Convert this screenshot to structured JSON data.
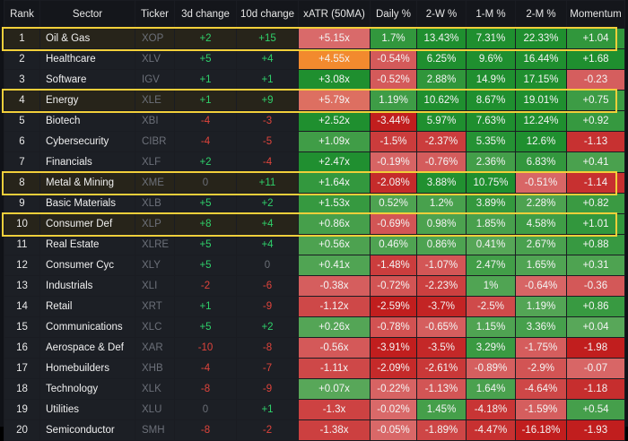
{
  "table": {
    "headers": [
      "Rank",
      "Sector",
      "Ticker",
      "3d change",
      "10d change",
      "xATR (50MA)",
      "Daily %",
      "2-W %",
      "1-M %",
      "2-M %",
      "Momentum"
    ],
    "rows": [
      {
        "rank": "1",
        "sector": "Oil & Gas",
        "ticker": "XOP",
        "d3": "+2",
        "d10": "+15",
        "xatr": "+5.15x",
        "daily": "1.7%",
        "w2": "13.43%",
        "m1": "7.31%",
        "m2": "22.33%",
        "mom": "+1.04",
        "highlight": true
      },
      {
        "rank": "2",
        "sector": "Healthcare",
        "ticker": "XLV",
        "d3": "+5",
        "d10": "+4",
        "xatr": "+4.55x",
        "daily": "-0.54%",
        "w2": "6.25%",
        "m1": "9.6%",
        "m2": "16.44%",
        "mom": "+1.68",
        "highlight": false
      },
      {
        "rank": "3",
        "sector": "Software",
        "ticker": "IGV",
        "d3": "+1",
        "d10": "+1",
        "xatr": "+3.08x",
        "daily": "-0.52%",
        "w2": "2.88%",
        "m1": "14.9%",
        "m2": "17.15%",
        "mom": "-0.23",
        "highlight": false
      },
      {
        "rank": "4",
        "sector": "Energy",
        "ticker": "XLE",
        "d3": "+1",
        "d10": "+9",
        "xatr": "+5.79x",
        "daily": "1.19%",
        "w2": "10.62%",
        "m1": "8.67%",
        "m2": "19.01%",
        "mom": "+0.75",
        "highlight": true
      },
      {
        "rank": "5",
        "sector": "Biotech",
        "ticker": "XBI",
        "d3": "-4",
        "d10": "-3",
        "xatr": "+2.52x",
        "daily": "-3.44%",
        "w2": "5.97%",
        "m1": "7.63%",
        "m2": "12.24%",
        "mom": "+0.92",
        "highlight": false
      },
      {
        "rank": "6",
        "sector": "Cybersecurity",
        "ticker": "CIBR",
        "d3": "-4",
        "d10": "-5",
        "xatr": "+1.09x",
        "daily": "-1.5%",
        "w2": "-2.37%",
        "m1": "5.35%",
        "m2": "12.6%",
        "mom": "-1.13",
        "highlight": false
      },
      {
        "rank": "7",
        "sector": "Financials",
        "ticker": "XLF",
        "d3": "+2",
        "d10": "-4",
        "xatr": "+2.47x",
        "daily": "-0.19%",
        "w2": "-0.76%",
        "m1": "2.36%",
        "m2": "6.83%",
        "mom": "+0.41",
        "highlight": false
      },
      {
        "rank": "8",
        "sector": "Metal & Mining",
        "ticker": "XME",
        "d3": "0",
        "d10": "+11",
        "xatr": "+1.64x",
        "daily": "-2.08%",
        "w2": "3.88%",
        "m1": "10.75%",
        "m2": "-0.51%",
        "mom": "-1.14",
        "highlight": true
      },
      {
        "rank": "9",
        "sector": "Basic Materials",
        "ticker": "XLB",
        "d3": "+5",
        "d10": "+2",
        "xatr": "+1.53x",
        "daily": "0.52%",
        "w2": "1.2%",
        "m1": "3.89%",
        "m2": "2.28%",
        "mom": "+0.82",
        "highlight": false
      },
      {
        "rank": "10",
        "sector": "Consumer Def",
        "ticker": "XLP",
        "d3": "+8",
        "d10": "+4",
        "xatr": "+0.86x",
        "daily": "-0.69%",
        "w2": "0.98%",
        "m1": "1.85%",
        "m2": "4.58%",
        "mom": "+1.01",
        "highlight": true
      },
      {
        "rank": "11",
        "sector": "Real Estate",
        "ticker": "XLRE",
        "d3": "+5",
        "d10": "+4",
        "xatr": "+0.56x",
        "daily": "0.46%",
        "w2": "0.86%",
        "m1": "0.41%",
        "m2": "2.67%",
        "mom": "+0.88",
        "highlight": false
      },
      {
        "rank": "12",
        "sector": "Consumer Cyc",
        "ticker": "XLY",
        "d3": "+5",
        "d10": "0",
        "xatr": "+0.41x",
        "daily": "-1.48%",
        "w2": "-1.07%",
        "m1": "2.47%",
        "m2": "1.65%",
        "mom": "+0.31",
        "highlight": false
      },
      {
        "rank": "13",
        "sector": "Industrials",
        "ticker": "XLI",
        "d3": "-2",
        "d10": "-6",
        "xatr": "-0.38x",
        "daily": "-0.72%",
        "w2": "-2.23%",
        "m1": "1%",
        "m2": "-0.64%",
        "mom": "-0.36",
        "highlight": false
      },
      {
        "rank": "14",
        "sector": "Retail",
        "ticker": "XRT",
        "d3": "+1",
        "d10": "-9",
        "xatr": "-1.12x",
        "daily": "-2.59%",
        "w2": "-3.7%",
        "m1": "-2.5%",
        "m2": "1.19%",
        "mom": "+0.86",
        "highlight": false
      },
      {
        "rank": "15",
        "sector": "Communications",
        "ticker": "XLC",
        "d3": "+5",
        "d10": "+2",
        "xatr": "+0.26x",
        "daily": "-0.78%",
        "w2": "-0.65%",
        "m1": "1.15%",
        "m2": "3.36%",
        "mom": "+0.04",
        "highlight": false
      },
      {
        "rank": "16",
        "sector": "Aerospace & Def",
        "ticker": "XAR",
        "d3": "-10",
        "d10": "-8",
        "xatr": "-0.56x",
        "daily": "-3.91%",
        "w2": "-3.5%",
        "m1": "3.29%",
        "m2": "-1.75%",
        "mom": "-1.98",
        "highlight": false
      },
      {
        "rank": "17",
        "sector": "Homebuilders",
        "ticker": "XHB",
        "d3": "-4",
        "d10": "-7",
        "xatr": "-1.11x",
        "daily": "-2.09%",
        "w2": "-2.61%",
        "m1": "-0.89%",
        "m2": "-2.9%",
        "mom": "-0.07",
        "highlight": false
      },
      {
        "rank": "18",
        "sector": "Technology",
        "ticker": "XLK",
        "d3": "-8",
        "d10": "-9",
        "xatr": "+0.07x",
        "daily": "-0.22%",
        "w2": "-1.13%",
        "m1": "1.64%",
        "m2": "-4.64%",
        "mom": "-1.18",
        "highlight": false
      },
      {
        "rank": "19",
        "sector": "Utilities",
        "ticker": "XLU",
        "d3": "0",
        "d10": "+1",
        "xatr": "-1.3x",
        "daily": "-0.02%",
        "w2": "1.45%",
        "m1": "-4.18%",
        "m2": "-1.59%",
        "mom": "+0.54",
        "highlight": false
      },
      {
        "rank": "20",
        "sector": "Semiconductor",
        "ticker": "SMH",
        "d3": "-8",
        "d10": "-2",
        "xatr": "-1.38x",
        "daily": "-0.05%",
        "w2": "-1.89%",
        "m1": "-4.47%",
        "m2": "-16.18%",
        "mom": "-1.93",
        "highlight": false
      }
    ]
  },
  "colors": {
    "change_positive": "#2fd06a",
    "change_negative": "#e0443c",
    "change_zero": "#6a6e76",
    "heat_green_light": "#5aa85a",
    "heat_green_dark": "#1f8f2f",
    "heat_red_light": "#d96a6a",
    "heat_red_dark": "#c11e1e",
    "heat_orange": "#f28a2e",
    "highlight_border": "#f2cf3a"
  }
}
